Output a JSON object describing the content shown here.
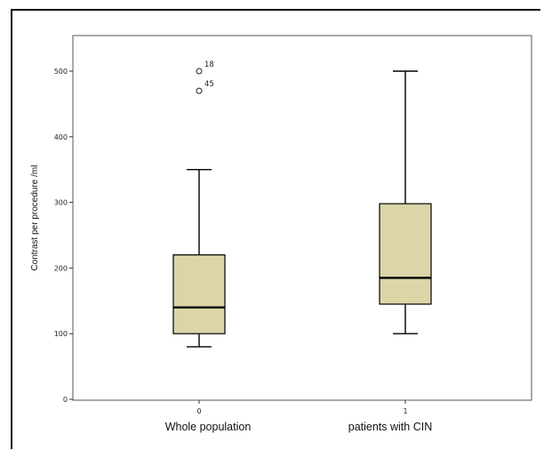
{
  "chart_data": {
    "type": "box",
    "ylabel": "Contrast per procedure /ml",
    "ylim": [
      0,
      550
    ],
    "yticks": [
      0,
      100,
      200,
      300,
      400,
      500
    ],
    "colors": {
      "box_fill": "#dcd5a8",
      "plot_bg": "#ffffff",
      "stroke": "#000000"
    },
    "categories": [
      {
        "code": "0",
        "name": "Whole population",
        "whisker_low": 80,
        "q1": 100,
        "median": 140,
        "q3": 220,
        "whisker_high": 350,
        "outliers": [
          {
            "label": "18",
            "value": 500
          },
          {
            "label": "45",
            "value": 470
          }
        ]
      },
      {
        "code": "1",
        "name": "patients with CIN",
        "whisker_low": 100,
        "q1": 145,
        "median": 185,
        "q3": 298,
        "whisker_high": 500,
        "outliers": []
      }
    ]
  }
}
